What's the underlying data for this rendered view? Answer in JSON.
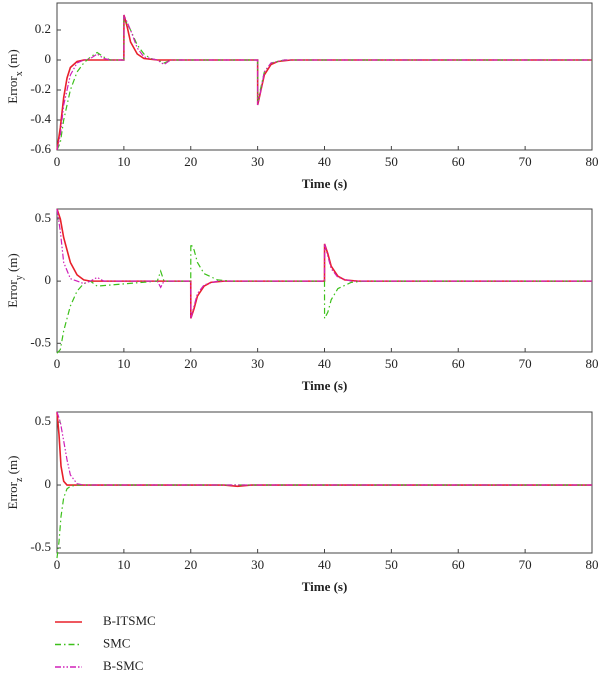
{
  "chart_data": [
    {
      "type": "line",
      "ylabel": [
        "Error",
        "x",
        " (m)"
      ],
      "xlabel": "Time (s)",
      "xlim": [
        0,
        80
      ],
      "xticks": [
        0,
        10,
        20,
        30,
        40,
        50,
        60,
        70,
        80
      ],
      "ylim": [
        -0.6,
        0.38
      ],
      "yticks": [
        0.2,
        0,
        -0.2,
        -0.4,
        -0.6
      ],
      "series": [
        {
          "color": "#e8202a",
          "dash": "solid",
          "x": [
            0,
            0.5,
            1,
            1.5,
            2,
            3,
            4,
            10,
            10.01,
            10.5,
            11,
            12,
            13,
            15,
            30,
            30.01,
            30.5,
            31,
            32,
            33,
            35,
            80
          ],
          "values": [
            -0.6,
            -0.45,
            -0.25,
            -0.12,
            -0.05,
            -0.01,
            0,
            0,
            0.3,
            0.22,
            0.12,
            0.04,
            0.01,
            0,
            0,
            -0.3,
            -0.2,
            -0.1,
            -0.03,
            -0.01,
            0,
            0
          ]
        },
        {
          "color": "#3cc01a",
          "dash": "dash-dot",
          "x": [
            0,
            0.5,
            1,
            2,
            3,
            4,
            5,
            6,
            7,
            8,
            10,
            10.01,
            11,
            12,
            13,
            14,
            15,
            16,
            17,
            30,
            30.01,
            30.5,
            31,
            32,
            34,
            80
          ],
          "values": [
            -0.6,
            -0.55,
            -0.4,
            -0.2,
            -0.08,
            -0.02,
            0.02,
            0.05,
            0.02,
            0,
            0,
            0.28,
            0.2,
            0.1,
            0.04,
            0.01,
            0,
            -0.02,
            0,
            0,
            -0.28,
            -0.18,
            -0.08,
            -0.02,
            0,
            0
          ]
        },
        {
          "color": "#d020b8",
          "dash": "dash-dot-dot",
          "x": [
            0,
            0.5,
            1,
            2,
            3,
            4,
            5,
            6,
            7,
            8,
            10,
            10.01,
            11,
            12,
            13,
            15,
            16,
            17,
            30,
            30.01,
            30.5,
            31,
            32,
            34,
            80
          ],
          "values": [
            -0.6,
            -0.5,
            -0.3,
            -0.1,
            -0.02,
            0,
            0.01,
            0.04,
            0.01,
            0,
            0,
            0.3,
            0.2,
            0.08,
            0.02,
            0,
            -0.03,
            0,
            0,
            -0.3,
            -0.2,
            -0.08,
            -0.02,
            0,
            0
          ]
        }
      ]
    },
    {
      "type": "line",
      "ylabel": [
        "Error",
        "y",
        " (m)"
      ],
      "xlabel": "Time (s)",
      "xlim": [
        0,
        80
      ],
      "xticks": [
        0,
        10,
        20,
        30,
        40,
        50,
        60,
        70,
        80
      ],
      "ylim": [
        -0.57,
        0.58
      ],
      "yticks": [
        0.5,
        0,
        -0.5
      ],
      "series": [
        {
          "color": "#e8202a",
          "dash": "solid",
          "x": [
            0,
            0.5,
            1,
            2,
            3,
            4,
            5,
            20,
            20.01,
            20.5,
            21,
            22,
            23,
            25,
            40,
            40.01,
            40.5,
            41,
            42,
            43,
            45,
            80
          ],
          "values": [
            0.58,
            0.5,
            0.35,
            0.15,
            0.05,
            0.01,
            0,
            0,
            -0.3,
            -0.22,
            -0.12,
            -0.04,
            -0.01,
            0,
            0,
            0.3,
            0.22,
            0.12,
            0.04,
            0.01,
            0,
            0
          ]
        },
        {
          "color": "#3cc01a",
          "dash": "dash-dot",
          "x": [
            0,
            0.5,
            1,
            2,
            3,
            4,
            5,
            6,
            15,
            15.5,
            16,
            17,
            20,
            20.01,
            20.5,
            21,
            22,
            24,
            26,
            40,
            40.01,
            40.5,
            41,
            42,
            44,
            46,
            80
          ],
          "values": [
            -0.58,
            -0.55,
            -0.4,
            -0.2,
            -0.08,
            -0.02,
            0,
            -0.04,
            0,
            0.08,
            0,
            0,
            0,
            0.3,
            0.25,
            0.15,
            0.06,
            0.01,
            0,
            0,
            -0.3,
            -0.25,
            -0.15,
            -0.06,
            -0.01,
            0,
            0
          ]
        },
        {
          "color": "#d020b8",
          "dash": "dash-dot-dot",
          "x": [
            0,
            0.5,
            1,
            2,
            3,
            4,
            5,
            6,
            7,
            15,
            15.5,
            16,
            20,
            20.01,
            20.5,
            21,
            22,
            24,
            40,
            40.01,
            40.5,
            41,
            42,
            44,
            80
          ],
          "values": [
            0.58,
            0.4,
            0.15,
            0.02,
            0,
            -0.02,
            0,
            0.03,
            0,
            0,
            -0.05,
            0,
            0,
            -0.3,
            -0.2,
            -0.1,
            -0.03,
            0,
            0,
            0.3,
            0.2,
            0.1,
            0.03,
            0,
            0
          ]
        }
      ]
    },
    {
      "type": "line",
      "ylabel": [
        "Error",
        "z",
        " (m)"
      ],
      "xlabel": "Time (s)",
      "xlim": [
        0,
        80
      ],
      "xticks": [
        0,
        10,
        20,
        30,
        40,
        50,
        60,
        70,
        80
      ],
      "ylim": [
        -0.54,
        0.58
      ],
      "yticks": [
        0.5,
        0,
        -0.5
      ],
      "series": [
        {
          "color": "#e8202a",
          "dash": "solid",
          "x": [
            0,
            0.3,
            0.6,
            1,
            1.5,
            2,
            25,
            27,
            29,
            80
          ],
          "values": [
            0.58,
            0.4,
            0.15,
            0.03,
            0,
            0,
            0,
            -0.01,
            0,
            0
          ]
        },
        {
          "color": "#3cc01a",
          "dash": "dash-dot",
          "x": [
            0,
            0.3,
            0.6,
            1,
            1.5,
            2,
            3,
            80
          ],
          "values": [
            -0.58,
            -0.45,
            -0.25,
            -0.1,
            -0.03,
            -0.01,
            0,
            0
          ]
        },
        {
          "color": "#d020b8",
          "dash": "dash-dot-dot",
          "x": [
            0,
            0.5,
            1,
            1.5,
            2,
            3,
            4,
            80
          ],
          "values": [
            0.58,
            0.5,
            0.35,
            0.2,
            0.08,
            0.01,
            0,
            0
          ]
        }
      ]
    }
  ],
  "legend": [
    {
      "name": "B-ITSMC",
      "color": "#e8202a",
      "dash": "solid"
    },
    {
      "name": "SMC",
      "color": "#3cc01a",
      "dash": "dash-dot"
    },
    {
      "name": "B-SMC",
      "color": "#d020b8",
      "dash": "dash-dot-dot"
    }
  ]
}
